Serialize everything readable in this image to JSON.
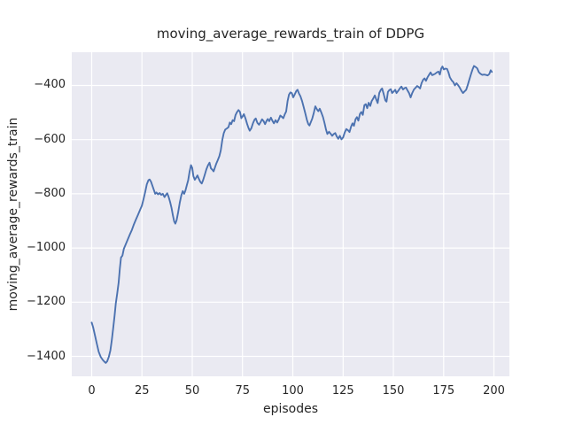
{
  "figure": {
    "background": "#ffffff"
  },
  "chart_data": {
    "type": "line",
    "title": "moving_average_rewards_train of DDPG",
    "xlabel": "episodes",
    "ylabel": "moving_average_rewards_train",
    "xlim": [
      -9.9,
      207.7
    ],
    "ylim": [
      -1473.5,
      -277.5
    ],
    "x_ticks": [
      0,
      25,
      50,
      75,
      100,
      125,
      150,
      175,
      200
    ],
    "x_tick_labels": [
      "0",
      "25",
      "50",
      "75",
      "100",
      "125",
      "150",
      "175",
      "200"
    ],
    "y_ticks": [
      -1400,
      -1200,
      -1000,
      -800,
      -600,
      -400
    ],
    "y_tick_labels": [
      "−1400",
      "−1200",
      "−1000",
      "−800",
      "−600",
      "−400"
    ],
    "grid": true,
    "legend": "none",
    "styles": {
      "axes_bg": "#eaeaf2",
      "grid_color": "#ffffff",
      "line_color": "#4c72b0",
      "text_color": "#262626",
      "line_width": 1.9,
      "grid_width": 1.2
    },
    "series": [
      {
        "name": "moving_average_rewards_train",
        "points": [
          [
            0,
            -1275
          ],
          [
            0.7,
            -1292
          ],
          [
            1.5,
            -1318
          ],
          [
            2.5,
            -1352
          ],
          [
            3.5,
            -1383
          ],
          [
            4.5,
            -1402
          ],
          [
            5.5,
            -1413
          ],
          [
            6.5,
            -1421
          ],
          [
            7,
            -1424
          ],
          [
            7.7,
            -1418
          ],
          [
            8.5,
            -1402
          ],
          [
            9.3,
            -1378
          ],
          [
            10,
            -1340
          ],
          [
            10.7,
            -1295
          ],
          [
            11.4,
            -1248
          ],
          [
            12,
            -1205
          ],
          [
            12.7,
            -1168
          ],
          [
            13.4,
            -1128
          ],
          [
            14,
            -1075
          ],
          [
            14.6,
            -1035
          ],
          [
            15.3,
            -1028
          ],
          [
            16,
            -1003
          ],
          [
            17,
            -985
          ],
          [
            18,
            -968
          ],
          [
            19,
            -950
          ],
          [
            20,
            -933
          ],
          [
            21,
            -913
          ],
          [
            22,
            -895
          ],
          [
            23,
            -878
          ],
          [
            24,
            -860
          ],
          [
            25,
            -843
          ],
          [
            25.8,
            -820
          ],
          [
            26.6,
            -793
          ],
          [
            27.4,
            -765
          ],
          [
            28.2,
            -750
          ],
          [
            28.8,
            -747
          ],
          [
            29.5,
            -755
          ],
          [
            30.2,
            -770
          ],
          [
            31,
            -788
          ],
          [
            31.6,
            -800
          ],
          [
            32.2,
            -795
          ],
          [
            33,
            -802
          ],
          [
            33.8,
            -797
          ],
          [
            34.6,
            -804
          ],
          [
            35.4,
            -800
          ],
          [
            36.2,
            -812
          ],
          [
            37,
            -803
          ],
          [
            37.6,
            -798
          ],
          [
            38.3,
            -812
          ],
          [
            39,
            -830
          ],
          [
            39.7,
            -852
          ],
          [
            40.4,
            -880
          ],
          [
            41,
            -902
          ],
          [
            41.6,
            -910
          ],
          [
            42.2,
            -898
          ],
          [
            43,
            -868
          ],
          [
            43.8,
            -833
          ],
          [
            44.6,
            -805
          ],
          [
            45.3,
            -790
          ],
          [
            46,
            -800
          ],
          [
            46.6,
            -788
          ],
          [
            47.3,
            -768
          ],
          [
            48,
            -750
          ],
          [
            48.7,
            -718
          ],
          [
            49.4,
            -694
          ],
          [
            50,
            -705
          ],
          [
            50.6,
            -735
          ],
          [
            51.3,
            -748
          ],
          [
            52,
            -740
          ],
          [
            52.6,
            -732
          ],
          [
            53.3,
            -745
          ],
          [
            54,
            -756
          ],
          [
            54.7,
            -762
          ],
          [
            55.4,
            -750
          ],
          [
            56.2,
            -730
          ],
          [
            57,
            -710
          ],
          [
            57.8,
            -695
          ],
          [
            58.6,
            -685
          ],
          [
            59.3,
            -706
          ],
          [
            60,
            -711
          ],
          [
            60.6,
            -717
          ],
          [
            61.3,
            -703
          ],
          [
            62,
            -688
          ],
          [
            62.7,
            -676
          ],
          [
            63.5,
            -661
          ],
          [
            64.2,
            -640
          ],
          [
            65,
            -600
          ],
          [
            65.7,
            -576
          ],
          [
            66.4,
            -563
          ],
          [
            67.2,
            -559
          ],
          [
            68,
            -554
          ],
          [
            68.7,
            -537
          ],
          [
            69.4,
            -543
          ],
          [
            70.1,
            -528
          ],
          [
            70.8,
            -532
          ],
          [
            71.5,
            -510
          ],
          [
            72.2,
            -499
          ],
          [
            73,
            -491
          ],
          [
            73.7,
            -497
          ],
          [
            74.4,
            -521
          ],
          [
            75.1,
            -513
          ],
          [
            75.7,
            -506
          ],
          [
            76.5,
            -522
          ],
          [
            77.3,
            -543
          ],
          [
            78,
            -558
          ],
          [
            78.6,
            -567
          ],
          [
            79.4,
            -558
          ],
          [
            80.2,
            -540
          ],
          [
            81,
            -526
          ],
          [
            81.6,
            -522
          ],
          [
            82.4,
            -538
          ],
          [
            83.2,
            -545
          ],
          [
            84,
            -535
          ],
          [
            84.7,
            -525
          ],
          [
            85.5,
            -532
          ],
          [
            86.2,
            -543
          ],
          [
            87,
            -530
          ],
          [
            87.6,
            -524
          ],
          [
            88.3,
            -532
          ],
          [
            89.1,
            -519
          ],
          [
            89.9,
            -531
          ],
          [
            90.6,
            -540
          ],
          [
            91.4,
            -528
          ],
          [
            92.2,
            -537
          ],
          [
            93,
            -526
          ],
          [
            93.8,
            -511
          ],
          [
            94.6,
            -516
          ],
          [
            95.3,
            -521
          ],
          [
            96,
            -507
          ],
          [
            96.7,
            -496
          ],
          [
            97.4,
            -458
          ],
          [
            98.1,
            -434
          ],
          [
            98.8,
            -426
          ],
          [
            99.5,
            -428
          ],
          [
            100.2,
            -444
          ],
          [
            101,
            -432
          ],
          [
            101.8,
            -420
          ],
          [
            102.4,
            -416
          ],
          [
            103.1,
            -430
          ],
          [
            103.8,
            -440
          ],
          [
            104.6,
            -457
          ],
          [
            105.4,
            -480
          ],
          [
            106.2,
            -503
          ],
          [
            107,
            -527
          ],
          [
            107.7,
            -543
          ],
          [
            108.3,
            -548
          ],
          [
            109,
            -535
          ],
          [
            109.7,
            -522
          ],
          [
            110.5,
            -500
          ],
          [
            111.2,
            -477
          ],
          [
            112,
            -488
          ],
          [
            112.7,
            -495
          ],
          [
            113.4,
            -486
          ],
          [
            114.2,
            -500
          ],
          [
            115,
            -517
          ],
          [
            115.8,
            -540
          ],
          [
            116.5,
            -563
          ],
          [
            117.2,
            -579
          ],
          [
            118,
            -571
          ],
          [
            118.8,
            -578
          ],
          [
            119.6,
            -586
          ],
          [
            120.4,
            -579
          ],
          [
            121.1,
            -576
          ],
          [
            121.9,
            -589
          ],
          [
            122.6,
            -597
          ],
          [
            123.4,
            -586
          ],
          [
            124.2,
            -599
          ],
          [
            125,
            -592
          ],
          [
            125.8,
            -574
          ],
          [
            126.6,
            -561
          ],
          [
            127.4,
            -565
          ],
          [
            128.2,
            -572
          ],
          [
            129,
            -552
          ],
          [
            129.7,
            -540
          ],
          [
            130.4,
            -549
          ],
          [
            131.2,
            -525
          ],
          [
            131.9,
            -517
          ],
          [
            132.6,
            -530
          ],
          [
            133.4,
            -505
          ],
          [
            134.1,
            -498
          ],
          [
            134.8,
            -509
          ],
          [
            135.6,
            -473
          ],
          [
            136.3,
            -469
          ],
          [
            137,
            -484
          ],
          [
            137.7,
            -464
          ],
          [
            138.5,
            -476
          ],
          [
            139.2,
            -458
          ],
          [
            140,
            -448
          ],
          [
            140.8,
            -437
          ],
          [
            141.5,
            -452
          ],
          [
            142.2,
            -465
          ],
          [
            143,
            -428
          ],
          [
            143.8,
            -416
          ],
          [
            144.4,
            -411
          ],
          [
            145.2,
            -432
          ],
          [
            146,
            -455
          ],
          [
            146.6,
            -460
          ],
          [
            147.3,
            -424
          ],
          [
            148,
            -417
          ],
          [
            148.7,
            -414
          ],
          [
            149.4,
            -428
          ],
          [
            150.2,
            -422
          ],
          [
            150.9,
            -416
          ],
          [
            151.6,
            -428
          ],
          [
            152.4,
            -420
          ],
          [
            153.2,
            -411
          ],
          [
            154,
            -404
          ],
          [
            154.8,
            -415
          ],
          [
            155.6,
            -410
          ],
          [
            156.3,
            -408
          ],
          [
            157,
            -418
          ],
          [
            157.8,
            -428
          ],
          [
            158.6,
            -444
          ],
          [
            159.4,
            -428
          ],
          [
            160.2,
            -415
          ],
          [
            161,
            -409
          ],
          [
            161.8,
            -402
          ],
          [
            162.6,
            -406
          ],
          [
            163.3,
            -411
          ],
          [
            164,
            -392
          ],
          [
            164.8,
            -379
          ],
          [
            165.5,
            -374
          ],
          [
            166.2,
            -383
          ],
          [
            167,
            -370
          ],
          [
            167.7,
            -361
          ],
          [
            168.5,
            -352
          ],
          [
            169.3,
            -362
          ],
          [
            170,
            -360
          ],
          [
            170.8,
            -357
          ],
          [
            171.6,
            -352
          ],
          [
            172.4,
            -349
          ],
          [
            173.1,
            -360
          ],
          [
            173.8,
            -338
          ],
          [
            174.4,
            -330
          ],
          [
            175.1,
            -341
          ],
          [
            175.9,
            -338
          ],
          [
            176.7,
            -339
          ],
          [
            177.4,
            -352
          ],
          [
            178.1,
            -370
          ],
          [
            179,
            -381
          ],
          [
            179.8,
            -388
          ],
          [
            180.6,
            -400
          ],
          [
            181.4,
            -392
          ],
          [
            182.2,
            -399
          ],
          [
            183,
            -408
          ],
          [
            183.8,
            -419
          ],
          [
            184.6,
            -428
          ],
          [
            185.4,
            -422
          ],
          [
            186.2,
            -416
          ],
          [
            187,
            -398
          ],
          [
            187.8,
            -378
          ],
          [
            188.6,
            -359
          ],
          [
            189.4,
            -340
          ],
          [
            190.1,
            -328
          ],
          [
            190.9,
            -332
          ],
          [
            191.7,
            -337
          ],
          [
            192.5,
            -351
          ],
          [
            193.3,
            -357
          ],
          [
            194.2,
            -361
          ],
          [
            195.1,
            -360
          ],
          [
            196,
            -361
          ],
          [
            196.9,
            -363
          ],
          [
            197.7,
            -358
          ],
          [
            198.4,
            -344
          ],
          [
            199,
            -350
          ]
        ]
      }
    ]
  }
}
